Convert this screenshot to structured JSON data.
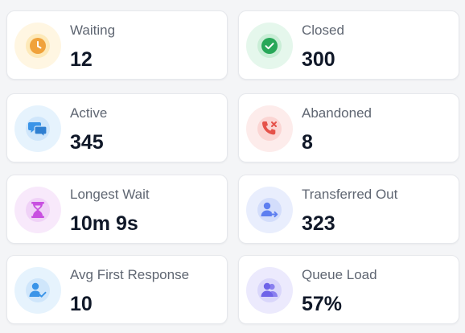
{
  "stats": [
    {
      "label": "Waiting",
      "value": "12",
      "icon": "clock-icon",
      "ring": "#fff6e2",
      "bg": "#fde9b8",
      "fg": "#f0a23b"
    },
    {
      "label": "Closed",
      "value": "300",
      "icon": "check-circle-icon",
      "ring": "#e5f7ec",
      "bg": "#c9eed6",
      "fg": "#27a758"
    },
    {
      "label": "Active",
      "value": "345",
      "icon": "chat-bubbles-icon",
      "ring": "#e6f3fd",
      "bg": "#cfe6fb",
      "fg": "#3a94e8"
    },
    {
      "label": "Abandoned",
      "value": "8",
      "icon": "phone-missed-icon",
      "ring": "#fdeceb",
      "bg": "#fbd5d3",
      "fg": "#e55149"
    },
    {
      "label": "Longest Wait",
      "value": "10m 9s",
      "icon": "hourglass-icon",
      "ring": "#f8e9fb",
      "bg": "#f0d2f7",
      "fg": "#c84fe0"
    },
    {
      "label": "Transferred Out",
      "value": "323",
      "icon": "user-transfer-icon",
      "ring": "#e9eefd",
      "bg": "#d3ddfb",
      "fg": "#5d7ef0"
    },
    {
      "label": "Avg First Response",
      "value": "10",
      "icon": "user-check-icon",
      "ring": "#e6f3fd",
      "bg": "#cfe6fb",
      "fg": "#3a94e8"
    },
    {
      "label": "Queue Load",
      "value": "57%",
      "icon": "users-icon",
      "ring": "#eceafd",
      "bg": "#d9d6fb",
      "fg": "#6e63e8"
    }
  ]
}
